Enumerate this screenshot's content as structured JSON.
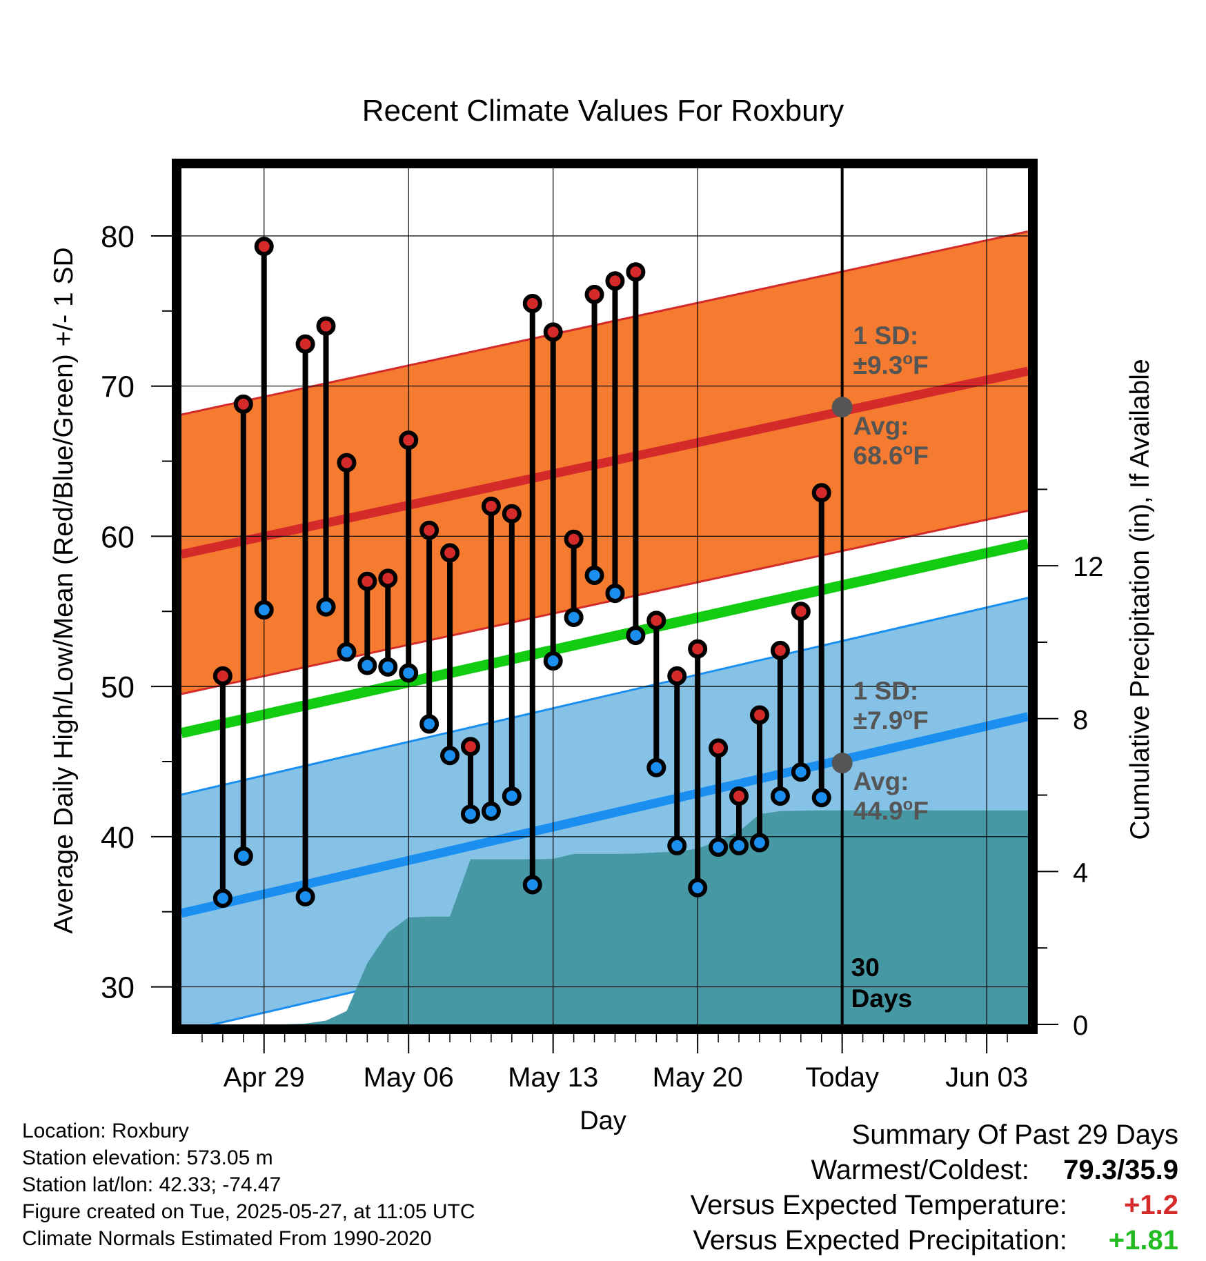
{
  "chart_data": {
    "type": "line",
    "title": "Recent Climate Values For Roxbury",
    "xlabel": "Day",
    "ylabel": "Average Daily High/Low/Mean (Red/Blue/Green) +/- 1 SD",
    "y2label": "Cumulative Precipitation (in), If Available",
    "ylim": [
      27.5,
      84.5
    ],
    "y2lim": [
      0,
      22.4
    ],
    "yticks": [
      30,
      40,
      50,
      60,
      70,
      80
    ],
    "y2ticks": [
      0,
      4,
      8,
      12
    ],
    "xlim": [
      "2025-04-25",
      "2025-06-05"
    ],
    "xticks": [
      {
        "date": "2025-04-29",
        "label": "Apr 29"
      },
      {
        "date": "2025-05-06",
        "label": "May 06"
      },
      {
        "date": "2025-05-13",
        "label": "May 13"
      },
      {
        "date": "2025-05-20",
        "label": "May 20"
      },
      {
        "date": "2025-05-27",
        "label": "Today"
      },
      {
        "date": "2025-06-03",
        "label": "Jun 03"
      }
    ],
    "grid": true,
    "days": [
      "2025-04-27",
      "2025-04-28",
      "2025-04-29",
      "2025-05-01",
      "2025-05-02",
      "2025-05-03",
      "2025-05-04",
      "2025-05-05",
      "2025-05-06",
      "2025-05-07",
      "2025-05-08",
      "2025-05-09",
      "2025-05-10",
      "2025-05-11",
      "2025-05-12",
      "2025-05-13",
      "2025-05-14",
      "2025-05-15",
      "2025-05-16",
      "2025-05-17",
      "2025-05-18",
      "2025-05-19",
      "2025-05-20",
      "2025-05-21",
      "2025-05-22",
      "2025-05-23",
      "2025-05-24",
      "2025-05-25",
      "2025-05-26"
    ],
    "observed_high": [
      50.7,
      68.8,
      79.3,
      72.8,
      74.0,
      64.9,
      57.0,
      57.2,
      66.4,
      60.4,
      58.9,
      46.0,
      62.0,
      61.5,
      75.5,
      73.6,
      59.8,
      76.1,
      77.0,
      77.6,
      54.4,
      50.7,
      52.5,
      45.9,
      42.7,
      48.1,
      52.4,
      55.0,
      62.9
    ],
    "observed_low": [
      35.9,
      38.7,
      55.1,
      36.0,
      55.3,
      52.3,
      51.4,
      51.3,
      50.9,
      47.5,
      45.4,
      41.5,
      41.7,
      42.7,
      36.8,
      51.7,
      54.6,
      57.4,
      56.2,
      53.4,
      44.6,
      39.4,
      36.6,
      39.3,
      39.4,
      39.6,
      42.7,
      44.3,
      42.6
    ],
    "normal_high": {
      "x": [
        "2025-04-25",
        "2025-06-05"
      ],
      "start": 58.8,
      "end": 71.0,
      "sd": 9.3
    },
    "normal_low": {
      "x": [
        "2025-04-25",
        "2025-06-05"
      ],
      "start": 34.9,
      "end": 48.0,
      "sd": 7.9
    },
    "normal_mean": {
      "x": [
        "2025-04-25",
        "2025-06-05"
      ],
      "start": 46.9,
      "end": 59.5
    },
    "precip_cumulative": {
      "dates": [
        "2025-04-25",
        "2025-04-29",
        "2025-04-30",
        "2025-05-01",
        "2025-05-02",
        "2025-05-03",
        "2025-05-04",
        "2025-05-05",
        "2025-05-06",
        "2025-05-07",
        "2025-05-08",
        "2025-05-09",
        "2025-05-10",
        "2025-05-11",
        "2025-05-12",
        "2025-05-13",
        "2025-05-14",
        "2025-05-15",
        "2025-05-16",
        "2025-05-17",
        "2025-05-18",
        "2025-05-19",
        "2025-05-20",
        "2025-05-21",
        "2025-05-22",
        "2025-05-23",
        "2025-05-24",
        "2025-05-25",
        "2025-05-26",
        "2025-05-27",
        "2025-06-05"
      ],
      "values": [
        0,
        0,
        0,
        0.02,
        0.1,
        0.35,
        1.6,
        2.4,
        2.8,
        2.82,
        2.82,
        4.32,
        4.32,
        4.32,
        4.32,
        4.33,
        4.46,
        4.46,
        4.46,
        4.47,
        4.5,
        4.52,
        4.6,
        4.8,
        5.05,
        5.5,
        5.58,
        5.59,
        5.6,
        5.6,
        5.6
      ]
    },
    "annotations": {
      "today_sd_high_label": "1 SD:",
      "today_sd_high": "±9.3",
      "today_avg_high_label": "Avg:",
      "today_avg_high": "68.6",
      "today_sd_low_label": "1 SD:",
      "today_sd_low": "±7.9",
      "today_avg_low_label": "Avg:",
      "today_avg_low": "44.9",
      "degree_unit_o": "o",
      "degree_unit_f": "F",
      "window_days": "30",
      "window_days_label": "Days"
    },
    "colors": {
      "high_band": "#f47b30",
      "high_line": "#d42a2a",
      "low_band": "#86c2e6",
      "low_line": "#1b8ff0",
      "mean_line": "#11cc11",
      "precip_fill": "#4699a4",
      "high_marker": "#d42a2a",
      "low_marker": "#1b8ff0",
      "annotation_text": "#555555"
    }
  },
  "footer": {
    "location": "Location: Roxbury",
    "elevation": "Station elevation: 573.05 m",
    "latlon": "Station lat/lon: 42.33; -74.47",
    "created": "Figure created on Tue, 2025-05-27, at 11:05 UTC",
    "normals": "Climate Normals Estimated From 1990-2020"
  },
  "summary": {
    "title": "Summary Of Past 29 Days",
    "warmest_label": "Warmest/Coldest:",
    "warmest_value": "79.3/35.9",
    "temp_label": "Versus Expected Temperature:",
    "temp_value": "+1.2",
    "temp_color": "#d42a2a",
    "precip_label": "Versus Expected Precipitation:",
    "precip_value": "+1.81",
    "precip_color": "#22bb22"
  }
}
